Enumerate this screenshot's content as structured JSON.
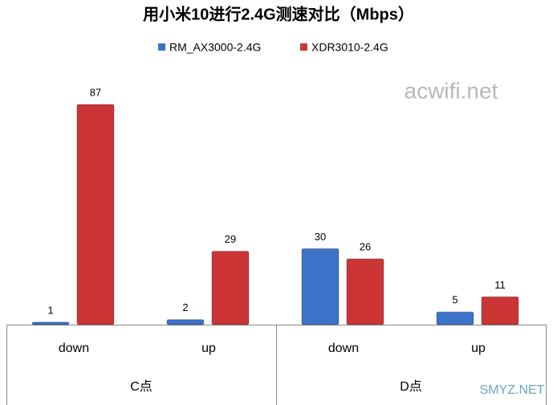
{
  "chart_data": {
    "type": "bar",
    "title": "用小米10进行2.4G测速对比（Mbps）",
    "categories": [
      "down",
      "up",
      "down",
      "up"
    ],
    "groups": [
      "C点",
      "D点"
    ],
    "series": [
      {
        "name": "RM_AX3000-2.4G",
        "color": "#3c72c8",
        "values": [
          1,
          2,
          30,
          5
        ]
      },
      {
        "name": "XDR3010-2.4G",
        "color": "#cc3535",
        "values": [
          87,
          29,
          26,
          11
        ]
      }
    ],
    "ylim": [
      0,
      100
    ],
    "legend": "top",
    "watermarks": [
      "acwifi.net",
      "SMYZ.NET"
    ]
  }
}
